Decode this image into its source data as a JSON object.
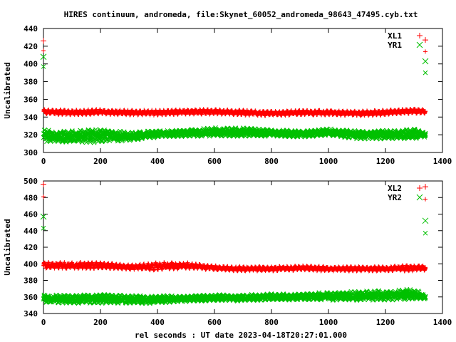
{
  "title": "HIRES continuum, andromeda, file:Skynet_60052_andromeda_98643_47495.cyb.txt",
  "xlabel": "rel seconds : UT date 2023-04-18T20:27:01.000",
  "colors": {
    "red": "#ff0000",
    "green": "#00c000"
  },
  "chart_data": [
    {
      "type": "scatter",
      "ylabel": "Uncalibrated",
      "xlim": [
        0,
        1400
      ],
      "ylim": [
        300,
        440
      ],
      "xticks": [
        0,
        200,
        400,
        600,
        800,
        1000,
        1200,
        1400
      ],
      "yticks": [
        300,
        320,
        340,
        360,
        380,
        400,
        420,
        440
      ],
      "legend_position": "top-right",
      "series": [
        {
          "name": "XL1",
          "marker": "plus",
          "color": "#ff0000",
          "cal_x": [
            0,
            0,
            1340,
            1340
          ],
          "cal_y": [
            426,
            415,
            427,
            414
          ],
          "band_x": [
            0,
            100,
            200,
            300,
            400,
            500,
            600,
            700,
            800,
            900,
            1000,
            1100,
            1200,
            1300,
            1340
          ],
          "band_center": [
            346,
            345,
            346,
            345,
            345,
            346,
            346,
            345,
            344,
            345,
            345,
            344,
            345,
            347,
            346
          ],
          "band_spread": [
            3,
            3,
            3,
            3,
            3,
            3,
            3,
            3,
            3,
            3,
            3,
            3,
            3,
            3,
            3
          ]
        },
        {
          "name": "YR1",
          "marker": "cross",
          "color": "#00c000",
          "cal_x": [
            0,
            0,
            1340,
            1340
          ],
          "cal_y": [
            408,
            397,
            403,
            390
          ],
          "band_x": [
            0,
            100,
            200,
            300,
            400,
            500,
            600,
            700,
            800,
            900,
            1000,
            1100,
            1200,
            1300,
            1340
          ],
          "band_center": [
            319,
            318,
            319,
            318,
            321,
            322,
            323,
            323,
            322,
            321,
            323,
            320,
            320,
            321,
            320
          ],
          "band_spread": [
            7,
            7,
            8,
            5,
            4,
            4,
            5,
            5,
            4,
            4,
            4,
            5,
            5,
            6,
            3
          ]
        }
      ]
    },
    {
      "type": "scatter",
      "ylabel": "Uncalibrated",
      "xlim": [
        0,
        1400
      ],
      "ylim": [
        340,
        500
      ],
      "xticks": [
        0,
        200,
        400,
        600,
        800,
        1000,
        1200,
        1400
      ],
      "yticks": [
        340,
        360,
        380,
        400,
        420,
        440,
        460,
        480,
        500
      ],
      "legend_position": "top-right",
      "series": [
        {
          "name": "XL2",
          "marker": "plus",
          "color": "#ff0000",
          "cal_x": [
            0,
            0,
            1340,
            1340
          ],
          "cal_y": [
            496,
            481,
            493,
            478
          ],
          "band_x": [
            0,
            100,
            200,
            300,
            400,
            500,
            600,
            700,
            800,
            900,
            1000,
            1100,
            1200,
            1300,
            1340
          ],
          "band_center": [
            398,
            398,
            398,
            396,
            397,
            398,
            395,
            394,
            394,
            395,
            394,
            394,
            394,
            395,
            395
          ],
          "band_spread": [
            4,
            4,
            4,
            3,
            5,
            4,
            3,
            3,
            3,
            3,
            3,
            3,
            3,
            4,
            3
          ]
        },
        {
          "name": "YR2",
          "marker": "cross",
          "color": "#00c000",
          "cal_x": [
            0,
            0,
            1340,
            1340
          ],
          "cal_y": [
            457,
            443,
            452,
            437
          ],
          "band_x": [
            0,
            100,
            200,
            300,
            400,
            500,
            600,
            700,
            800,
            900,
            1000,
            1100,
            1200,
            1300,
            1340
          ],
          "band_center": [
            358,
            357,
            358,
            357,
            357,
            358,
            359,
            359,
            360,
            360,
            361,
            361,
            362,
            363,
            360
          ],
          "band_spread": [
            5,
            5,
            6,
            5,
            5,
            4,
            4,
            4,
            4,
            4,
            5,
            6,
            6,
            7,
            3
          ]
        }
      ]
    }
  ]
}
